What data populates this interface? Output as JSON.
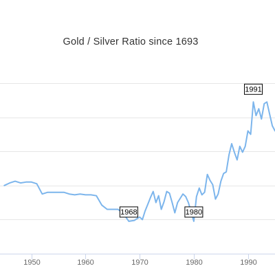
{
  "chart_data": {
    "type": "line",
    "title": "Gold / Silver Ratio since 1693",
    "xlabel": "",
    "ylabel": "",
    "x_ticks": [
      1950,
      1960,
      1970,
      1980,
      1990
    ],
    "grid": "horizontal",
    "legend": "none",
    "series": [
      {
        "color": "#7cb5ec",
        "points": [
          [
            1945,
            40.0
          ],
          [
            1946,
            41.5
          ],
          [
            1947,
            42.5
          ],
          [
            1948,
            41.5
          ],
          [
            1949,
            42.0
          ],
          [
            1950,
            42.0
          ],
          [
            1951,
            41.0
          ],
          [
            1952,
            35.0
          ],
          [
            1953,
            36.0
          ],
          [
            1954,
            36.0
          ],
          [
            1955,
            36.0
          ],
          [
            1956,
            36.0
          ],
          [
            1957,
            35.0
          ],
          [
            1958,
            34.5
          ],
          [
            1959,
            35.0
          ],
          [
            1960,
            34.5
          ],
          [
            1961,
            34.5
          ],
          [
            1962,
            34.0
          ],
          [
            1963,
            28.5
          ],
          [
            1964,
            26.0
          ],
          [
            1965,
            26.0
          ],
          [
            1966,
            26.0
          ],
          [
            1967,
            23.5
          ],
          [
            1968,
            19.0
          ],
          [
            1969,
            19.5
          ],
          [
            1970,
            21.5
          ],
          [
            1970.5,
            20.0
          ],
          [
            1971,
            25.0
          ],
          [
            1971.5,
            29.0
          ],
          [
            1972,
            33.0
          ],
          [
            1972.5,
            36.5
          ],
          [
            1973,
            30.0
          ],
          [
            1973.5,
            34.0
          ],
          [
            1974,
            26.0
          ],
          [
            1974.5,
            30.5
          ],
          [
            1975,
            36.5
          ],
          [
            1975.5,
            35.5
          ],
          [
            1976,
            30.0
          ],
          [
            1976.5,
            24.0
          ],
          [
            1977,
            30.0
          ],
          [
            1977.5,
            32.5
          ],
          [
            1978,
            35.0
          ],
          [
            1978.5,
            33.5
          ],
          [
            1979,
            30.0
          ],
          [
            1979.5,
            24.5
          ],
          [
            1980,
            19.0
          ],
          [
            1980.5,
            33.5
          ],
          [
            1981,
            38.5
          ],
          [
            1981.5,
            34.5
          ],
          [
            1982,
            36.0
          ],
          [
            1982.5,
            46.5
          ],
          [
            1983,
            43.0
          ],
          [
            1983.5,
            40.5
          ],
          [
            1984,
            32.0
          ],
          [
            1984.5,
            35.0
          ],
          [
            1985,
            42.5
          ],
          [
            1985.5,
            47.0
          ],
          [
            1986,
            48.0
          ],
          [
            1986.5,
            58.0
          ],
          [
            1987,
            64.5
          ],
          [
            1987.5,
            59.5
          ],
          [
            1988,
            55.0
          ],
          [
            1988.5,
            63.0
          ],
          [
            1989,
            59.5
          ],
          [
            1989.5,
            63.0
          ],
          [
            1990,
            72.0
          ],
          [
            1990.5,
            70.0
          ],
          [
            1991,
            89.0
          ],
          [
            1991.5,
            81.0
          ],
          [
            1992,
            85.0
          ],
          [
            1992.5,
            79.0
          ],
          [
            1993,
            88.0
          ],
          [
            1993.5,
            89.0
          ],
          [
            1994,
            82.0
          ],
          [
            1994.5,
            75.0
          ],
          [
            1995,
            72.0
          ]
        ]
      }
    ],
    "annotations": [
      {
        "label": "1968",
        "x": 1968,
        "y": 19.0
      },
      {
        "label": "1980",
        "x": 1980,
        "y": 19.0
      },
      {
        "label": "1991",
        "x": 1991,
        "y": 89.0
      }
    ],
    "ylim": [
      0,
      100
    ],
    "xlim": [
      1944.2,
      1995
    ]
  }
}
